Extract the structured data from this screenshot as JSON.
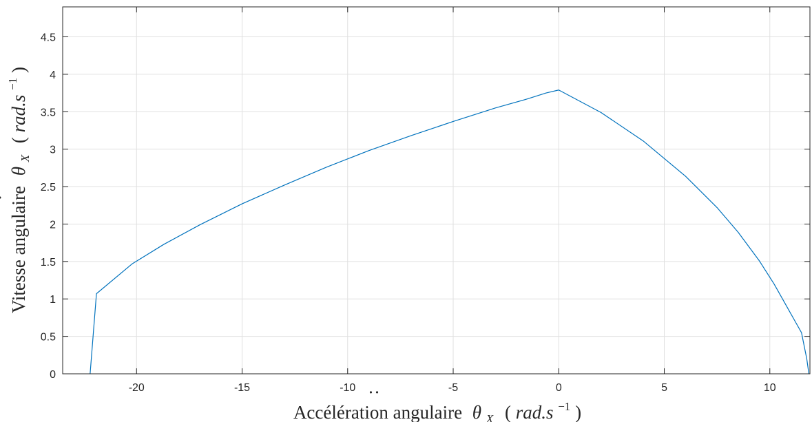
{
  "chart_data": {
    "type": "line",
    "title": "",
    "xlabel": {
      "text": "Accélération angulaire",
      "symbol": "θ",
      "subscript": "X",
      "unit_open": "(",
      "unit_rad": "rad.s",
      "unit_exp": "−1",
      "unit_close": ")"
    },
    "ylabel": {
      "text": "Vitesse angulaire",
      "symbol": "θ",
      "subscript": "X",
      "unit_open": "(",
      "unit_rad": "rad.s",
      "unit_exp": "−1",
      "unit_close": ")"
    },
    "xlim": [
      -23.5,
      11.9
    ],
    "ylim": [
      0,
      4.9
    ],
    "xticks": [
      -20,
      -15,
      -10,
      -5,
      0,
      5,
      10
    ],
    "xtick_labels": [
      "-20",
      "-15",
      "-10",
      "-5",
      "0",
      "5",
      "10"
    ],
    "yticks": [
      0,
      0.5,
      1,
      1.5,
      2,
      2.5,
      3,
      3.5,
      4,
      4.5
    ],
    "ytick_labels": [
      "0",
      "0.5",
      "1",
      "1.5",
      "2",
      "2.5",
      "3",
      "3.5",
      "4",
      "4.5"
    ],
    "grid": true,
    "series": [
      {
        "color": "#0072BD",
        "x": [
          -22.2,
          -21.9,
          -20.2,
          -18.7,
          -17.0,
          -15.0,
          -13.0,
          -11.0,
          -9.0,
          -7.0,
          -5.0,
          -3.0,
          -1.5,
          -0.6,
          0.0,
          2.0,
          4.0,
          6.0,
          7.5,
          8.5,
          9.5,
          10.2,
          10.8,
          11.2,
          11.5,
          11.75,
          11.85
        ],
        "y": [
          0.0,
          1.07,
          1.47,
          1.73,
          1.99,
          2.27,
          2.52,
          2.76,
          2.98,
          3.18,
          3.37,
          3.55,
          3.67,
          3.75,
          3.79,
          3.49,
          3.11,
          2.64,
          2.22,
          1.89,
          1.51,
          1.2,
          0.9,
          0.7,
          0.55,
          0.2,
          0.0
        ]
      }
    ]
  }
}
